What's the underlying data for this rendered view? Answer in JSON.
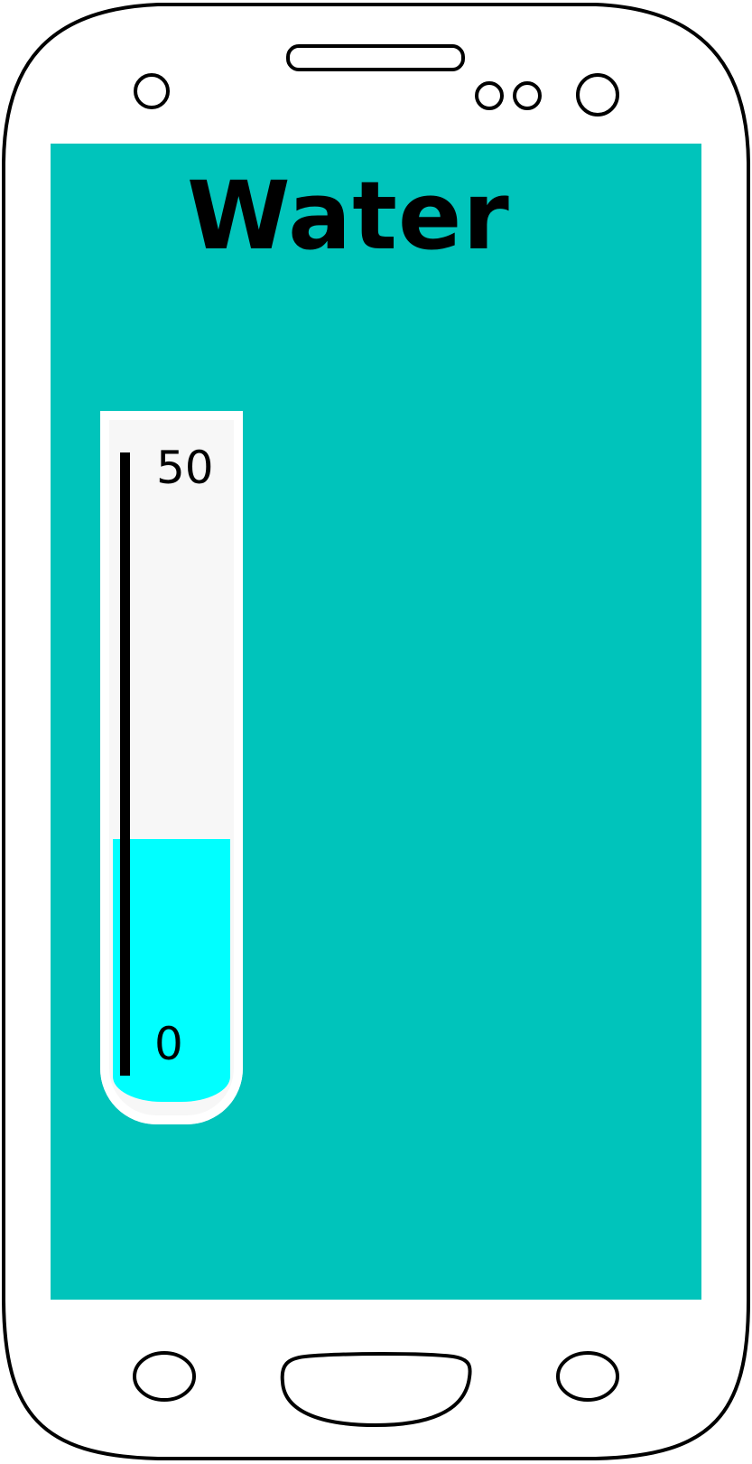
{
  "screen": {
    "background_color": "#00c4bb",
    "title": "Water"
  },
  "gauge": {
    "max_label": "50",
    "min_label": "0",
    "min": 0,
    "max": 50,
    "value": 19,
    "fill_color": "#00ffff",
    "tube_color": "#f7f7f7"
  },
  "icons": {
    "front_camera": "circle-icon",
    "sensor_left": "circle-icon",
    "sensor_right": "circle-icon",
    "proximity_sensor": "circle-icon",
    "earpiece": "speaker-slot-icon",
    "back_key": "oval-key-icon",
    "menu_key": "oval-key-icon",
    "home_key": "home-button-icon"
  }
}
